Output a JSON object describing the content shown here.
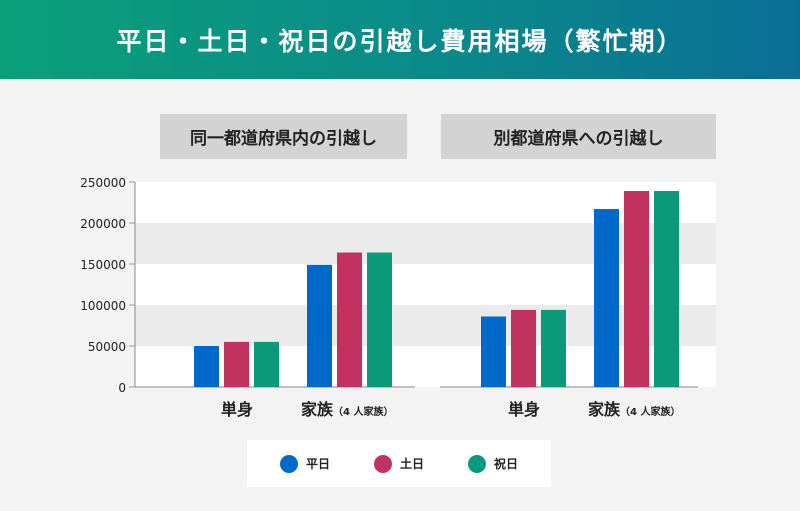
{
  "header": {
    "title": "平日・土日・祝日の引越し費用相場（繁忙期）"
  },
  "groups": [
    {
      "label": "同一都道府県内の引越し"
    },
    {
      "label": "別都道府県への引越し"
    }
  ],
  "colors": {
    "weekday": "#0068c9",
    "weekend": "#c0325f",
    "holiday": "#0a9a79"
  },
  "chart_data": {
    "type": "bar",
    "series": [
      {
        "name": "平日",
        "values": [
          50000,
          149000,
          86000,
          217000
        ]
      },
      {
        "name": "土日",
        "values": [
          55000,
          164000,
          94000,
          239000
        ]
      },
      {
        "name": "祝日",
        "values": [
          55000,
          164000,
          94000,
          239000
        ]
      }
    ],
    "categories": [
      {
        "main": "単身",
        "sub": ""
      },
      {
        "main": "家族",
        "sub": "（4 人家族）"
      },
      {
        "main": "単身",
        "sub": ""
      },
      {
        "main": "家族",
        "sub": "（4 人家族）"
      }
    ],
    "y_ticks": [
      "0",
      "50000",
      "100000",
      "150000",
      "200000",
      "250000"
    ],
    "ylim": [
      0,
      250000
    ],
    "grid": true,
    "legend": "bottom"
  }
}
